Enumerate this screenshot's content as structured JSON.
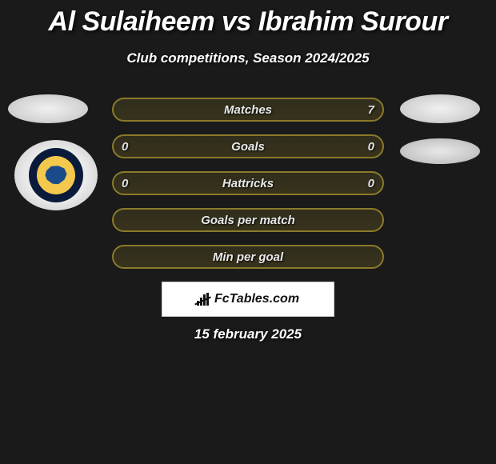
{
  "title": "Al Sulaiheem vs Ibrahim Surour",
  "subtitle": "Club competitions, Season 2024/2025",
  "title_color": "#ffffff",
  "subtitle_color": "#ffffff",
  "background_color": "#1a1a1a",
  "row_border_color": "#8a7a2a",
  "row_text_color": "#e8e8e8",
  "player_left": {
    "avatar_label": "player-photo-placeholder",
    "club_crest": {
      "outer": "#0a1a3a",
      "ring": "#f2c94c",
      "map": "#1a4a8a"
    }
  },
  "player_right": {
    "avatar_label": "player-photo-placeholder",
    "club_crest_label": "club-logo-placeholder"
  },
  "rows": [
    {
      "label": "Matches",
      "left": "",
      "right": "7"
    },
    {
      "label": "Goals",
      "left": "0",
      "right": "0"
    },
    {
      "label": "Hattricks",
      "left": "0",
      "right": "0"
    },
    {
      "label": "Goals per match",
      "left": "",
      "right": ""
    },
    {
      "label": "Min per goal",
      "left": "",
      "right": ""
    }
  ],
  "branding": {
    "text": "FcTables.com",
    "bg": "#ffffff",
    "text_color": "#111111"
  },
  "date": "15 february 2025"
}
